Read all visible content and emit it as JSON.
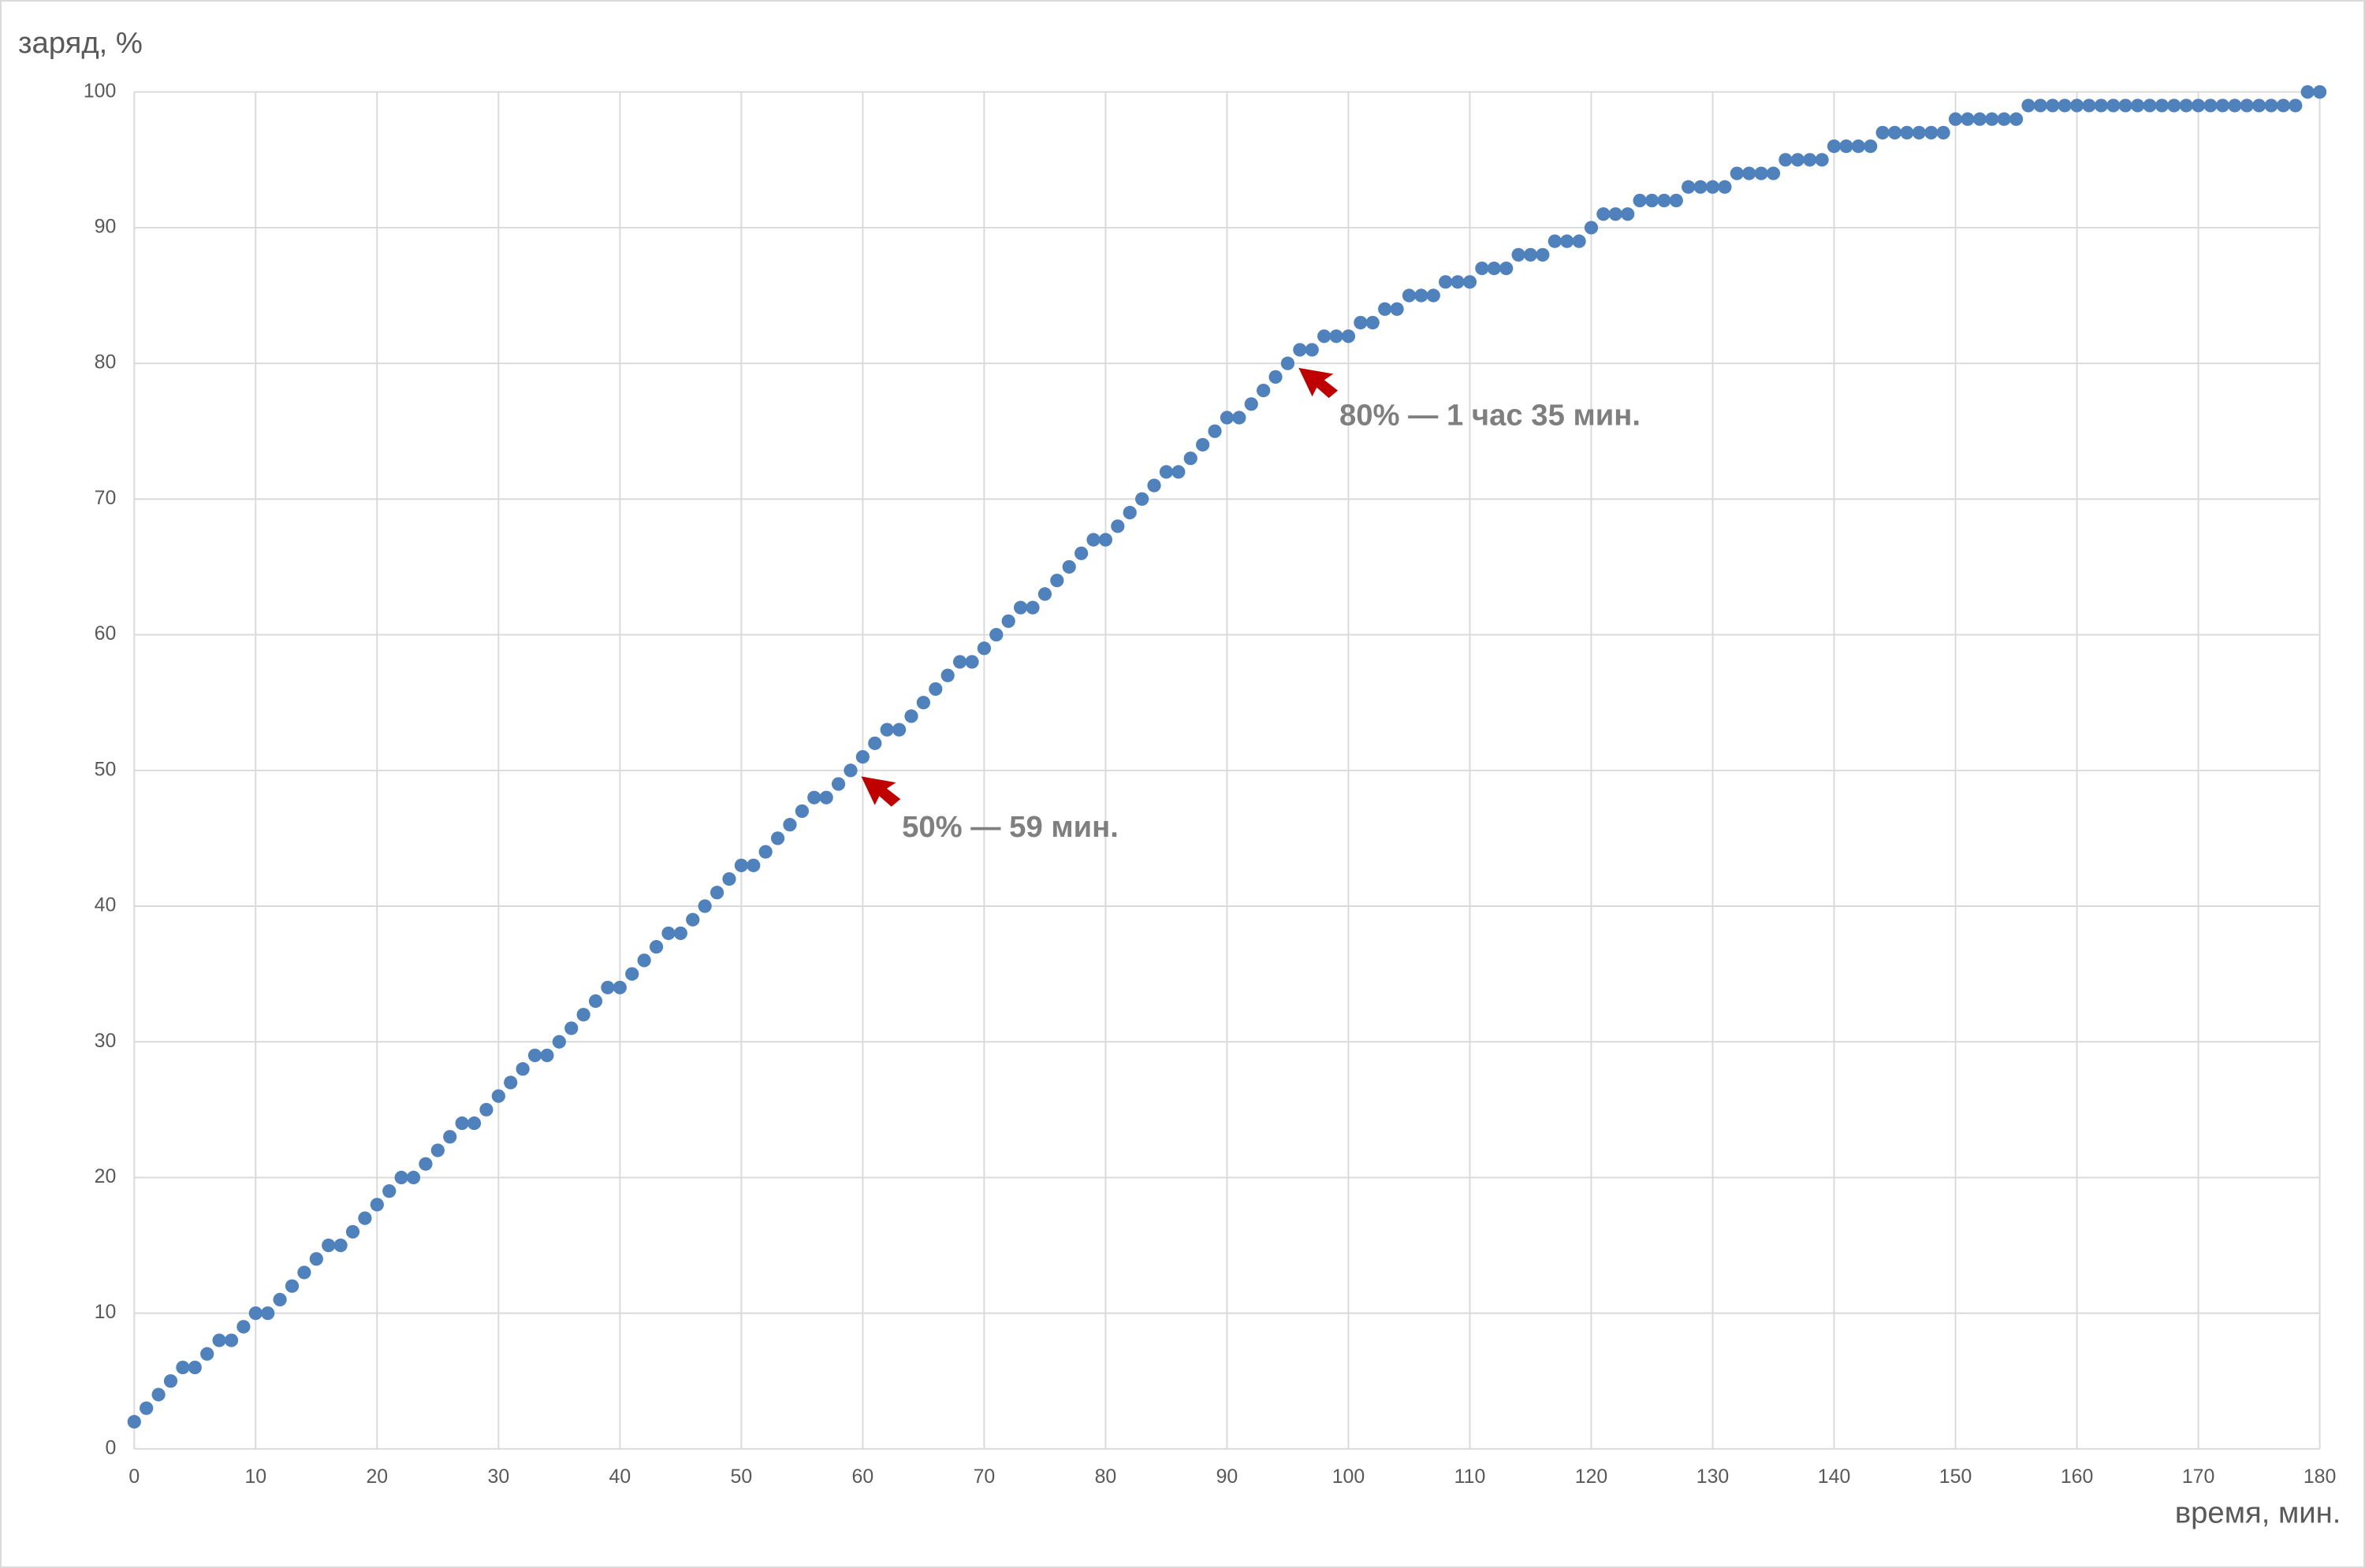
{
  "chart_data": {
    "type": "scatter",
    "y_label": "заряд, %",
    "x_label": "время, мин.",
    "x": [
      0,
      1,
      2,
      3,
      4,
      5,
      6,
      7,
      8,
      9,
      10,
      11,
      12,
      13,
      14,
      15,
      16,
      17,
      18,
      19,
      20,
      21,
      22,
      23,
      24,
      25,
      26,
      27,
      28,
      29,
      30,
      31,
      32,
      33,
      34,
      35,
      36,
      37,
      38,
      39,
      40,
      41,
      42,
      43,
      44,
      45,
      46,
      47,
      48,
      49,
      50,
      51,
      52,
      53,
      54,
      55,
      56,
      57,
      58,
      59,
      60,
      61,
      62,
      63,
      64,
      65,
      66,
      67,
      68,
      69,
      70,
      71,
      72,
      73,
      74,
      75,
      76,
      77,
      78,
      79,
      80,
      81,
      82,
      83,
      84,
      85,
      86,
      87,
      88,
      89,
      90,
      91,
      92,
      93,
      94,
      95,
      96,
      97,
      98,
      99,
      100,
      101,
      102,
      103,
      104,
      105,
      106,
      107,
      108,
      109,
      110,
      111,
      112,
      113,
      114,
      115,
      116,
      117,
      118,
      119,
      120,
      121,
      122,
      123,
      124,
      125,
      126,
      127,
      128,
      129,
      130,
      131,
      132,
      133,
      134,
      135,
      136,
      137,
      138,
      139,
      140,
      141,
      142,
      143,
      144,
      145,
      146,
      147,
      148,
      149,
      150,
      151,
      152,
      153,
      154,
      155,
      156,
      157,
      158,
      159,
      160,
      161,
      162,
      163,
      164,
      165,
      166,
      167,
      168,
      169,
      170,
      171,
      172,
      173,
      174,
      175,
      176,
      177,
      178,
      179,
      180
    ],
    "values": [
      2,
      3,
      4,
      5,
      6,
      6,
      7,
      8,
      8,
      9,
      10,
      10,
      11,
      12,
      13,
      14,
      15,
      15,
      16,
      17,
      18,
      19,
      20,
      20,
      21,
      22,
      23,
      24,
      24,
      25,
      26,
      27,
      28,
      29,
      29,
      30,
      31,
      32,
      33,
      34,
      34,
      35,
      36,
      37,
      38,
      38,
      39,
      40,
      41,
      42,
      43,
      43,
      44,
      45,
      46,
      47,
      48,
      48,
      49,
      50,
      51,
      52,
      53,
      53,
      54,
      55,
      56,
      57,
      58,
      58,
      59,
      60,
      61,
      62,
      62,
      63,
      64,
      65,
      66,
      67,
      67,
      68,
      69,
      70,
      71,
      72,
      72,
      73,
      74,
      75,
      76,
      76,
      77,
      78,
      79,
      80,
      81,
      81,
      82,
      82,
      82,
      83,
      83,
      84,
      84,
      85,
      85,
      85,
      86,
      86,
      86,
      87,
      87,
      87,
      88,
      88,
      88,
      89,
      89,
      89,
      90,
      91,
      91,
      91,
      92,
      92,
      92,
      92,
      93,
      93,
      93,
      93,
      94,
      94,
      94,
      94,
      95,
      95,
      95,
      95,
      96,
      96,
      96,
      96,
      97,
      97,
      97,
      97,
      97,
      97,
      98,
      98,
      98,
      98,
      98,
      98,
      99,
      99,
      99,
      99,
      99,
      99,
      99,
      99,
      99,
      99,
      99,
      99,
      99,
      99,
      99,
      99,
      99,
      99,
      99,
      99,
      99,
      99,
      99,
      100,
      100
    ],
    "color": "#4f81bd",
    "xlim": [
      0,
      180
    ],
    "xticks": [
      0,
      10,
      20,
      30,
      40,
      50,
      60,
      70,
      80,
      90,
      100,
      110,
      120,
      130,
      140,
      150,
      160,
      170,
      180
    ],
    "ylim": [
      0,
      100
    ],
    "yticks": [
      0,
      10,
      20,
      30,
      40,
      50,
      60,
      70,
      80,
      90,
      100
    ],
    "grid": true,
    "annotations": [
      "50% — 59 мин.",
      "80% — 1 час 35 мин."
    ]
  }
}
